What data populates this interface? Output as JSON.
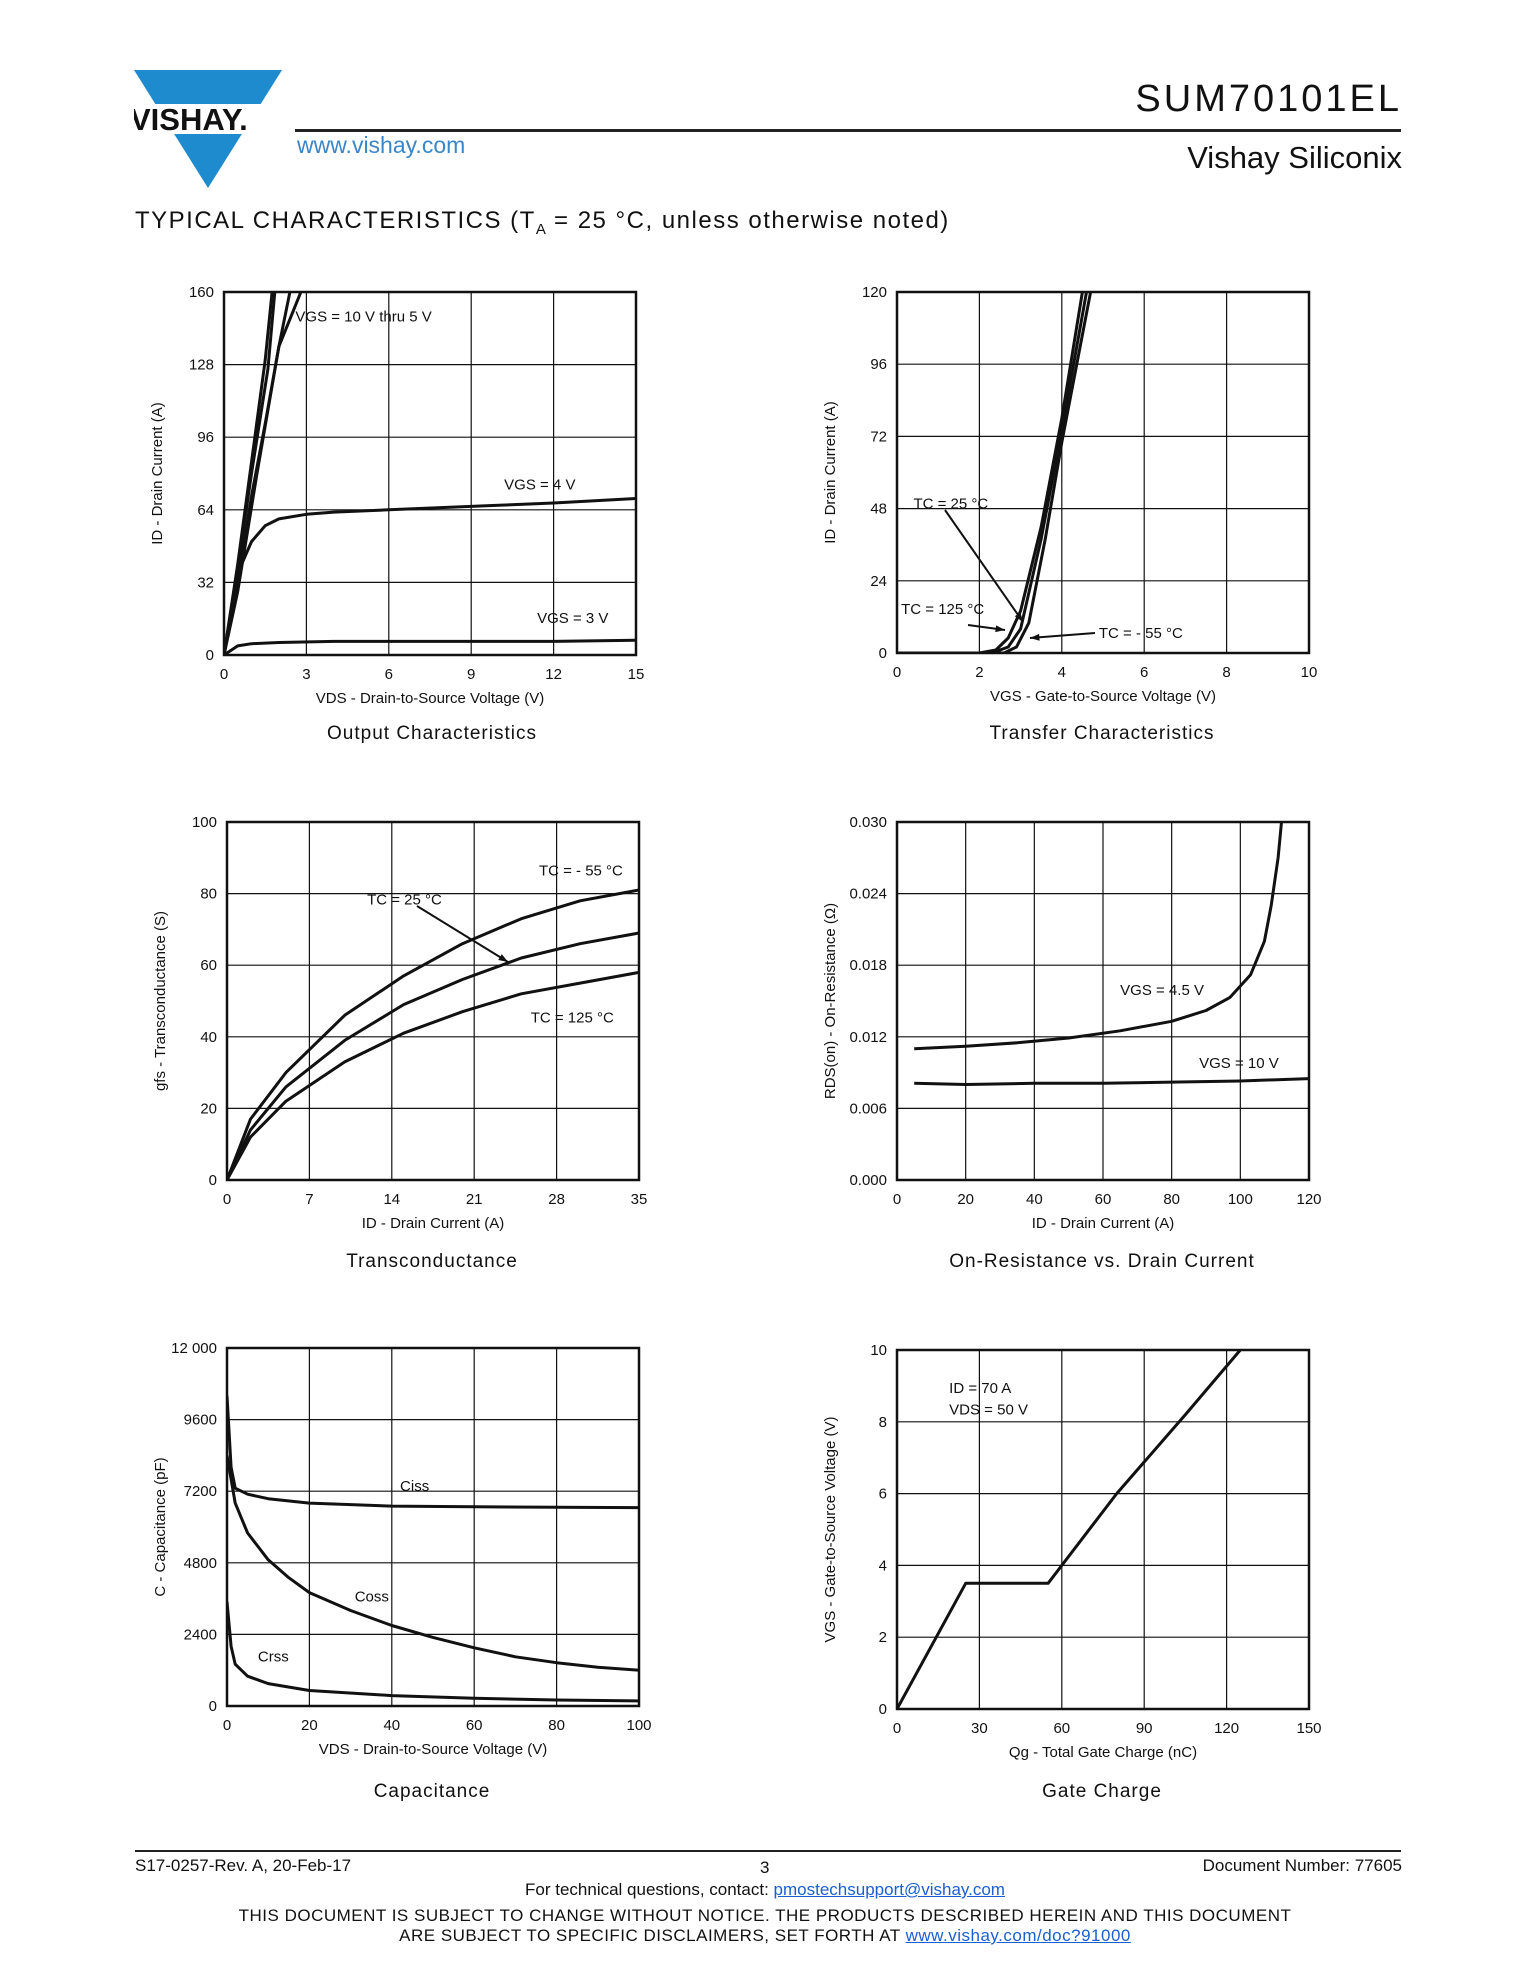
{
  "header": {
    "logo_text": "VISHAY.",
    "url": "www.vishay.com",
    "doc_title": "SUM70101EL",
    "company": "Vishay Siliconix"
  },
  "section": {
    "title_prefix": "TYPICAL CHARACTERISTICS (T",
    "title_sub": "A",
    "title_suffix": " = 25 °C, unless otherwise noted)"
  },
  "colors": {
    "logo_blue": "#1f8bcf",
    "link_blue": "#1a5fd0",
    "ink": "#111111"
  },
  "chart_data": [
    {
      "id": "output",
      "type": "line",
      "title": "Output Characteristics",
      "xlabel": "VDS - Drain-to-Source Voltage (V)",
      "ylabel": "ID - Drain Current (A)",
      "xlim": [
        0,
        15
      ],
      "ylim": [
        0,
        160
      ],
      "xticks": [
        0,
        3,
        6,
        9,
        12,
        15
      ],
      "yticks": [
        0,
        32,
        64,
        96,
        128,
        160
      ],
      "series": [
        {
          "name": "VGS = 10 V thru 5 V (a)",
          "x": [
            0,
            0.5,
            1.0,
            1.5,
            1.75
          ],
          "y": [
            0,
            40,
            85,
            130,
            160
          ]
        },
        {
          "name": "VGS = 10 V thru 5 V (b)",
          "x": [
            0,
            0.5,
            1.0,
            1.6,
            1.85
          ],
          "y": [
            0,
            38,
            80,
            126,
            160
          ]
        },
        {
          "name": "VGS = 10 V thru 5 V (c)",
          "x": [
            0,
            0.5,
            1.0,
            1.5,
            2.0,
            2.4
          ],
          "y": [
            0,
            32,
            70,
            102,
            136,
            160
          ]
        },
        {
          "name": "VGS = 10 V thru 5 V (d)",
          "x": [
            0,
            0.5,
            1.2,
            2.0,
            2.8
          ],
          "y": [
            0,
            28,
            80,
            136,
            160
          ]
        },
        {
          "name": "VGS = 4 V",
          "x": [
            0,
            0.5,
            1.0,
            1.5,
            2,
            3,
            4,
            6,
            8,
            10,
            12,
            15
          ],
          "y": [
            0,
            36,
            50,
            57,
            60,
            62,
            63,
            64,
            65,
            66,
            67,
            69
          ]
        },
        {
          "name": "VGS = 3 V",
          "x": [
            0,
            0.5,
            1,
            2,
            4,
            8,
            12,
            15
          ],
          "y": [
            0,
            4,
            5,
            5.5,
            6,
            6,
            6,
            6.5
          ]
        }
      ],
      "annotations": [
        {
          "text": "VGS = 10 V thru 5 V",
          "at": [
            2.6,
            147
          ]
        },
        {
          "text": "VGS = 4 V",
          "at": [
            10.2,
            73
          ]
        },
        {
          "text": "VGS = 3 V",
          "at": [
            11.4,
            14
          ]
        }
      ]
    },
    {
      "id": "transfer",
      "type": "line",
      "title": "Transfer Characteristics",
      "xlabel": "VGS - Gate-to-Source Voltage (V)",
      "ylabel": "ID - Drain Current (A)",
      "xlim": [
        0,
        10
      ],
      "ylim": [
        0,
        120
      ],
      "xticks": [
        0,
        2,
        4,
        6,
        8,
        10
      ],
      "yticks": [
        0,
        24,
        48,
        72,
        96,
        120
      ],
      "series": [
        {
          "name": "TC = 125 °C",
          "x": [
            0,
            2.0,
            2.4,
            2.7,
            3.0,
            3.5,
            4.0,
            4.5
          ],
          "y": [
            0,
            0,
            1,
            5,
            14,
            42,
            78,
            120
          ]
        },
        {
          "name": "TC = 25 °C",
          "x": [
            0,
            2.3,
            2.7,
            3.0,
            3.5,
            4.0,
            4.6
          ],
          "y": [
            0,
            0,
            2,
            8,
            38,
            74,
            120
          ]
        },
        {
          "name": "TC = -55 °C",
          "x": [
            0,
            2.6,
            2.9,
            3.2,
            3.6,
            4.0,
            4.7
          ],
          "y": [
            0,
            0,
            2,
            10,
            38,
            70,
            120
          ]
        }
      ],
      "annotations": [
        {
          "text": "TC = 25 °C",
          "at": [
            0.4,
            48
          ]
        },
        {
          "text": "TC = 125 °C",
          "at": [
            0.1,
            13
          ]
        },
        {
          "text": "TC = - 55 °C",
          "at": [
            4.9,
            5
          ]
        }
      ]
    },
    {
      "id": "transconductance",
      "type": "line",
      "title": "Transconductance",
      "xlabel": "ID - Drain Current (A)",
      "ylabel": "gfs - Transconductance (S)",
      "xlim": [
        0,
        35
      ],
      "ylim": [
        0,
        100
      ],
      "xticks": [
        0,
        7,
        14,
        21,
        28,
        35
      ],
      "yticks": [
        0,
        20,
        40,
        60,
        80,
        100
      ],
      "series": [
        {
          "name": "TC = -55 °C",
          "x": [
            0,
            2,
            5,
            10,
            15,
            20,
            25,
            30,
            35
          ],
          "y": [
            0,
            17,
            30,
            46,
            57,
            66,
            73,
            78,
            81
          ]
        },
        {
          "name": "TC = 25 °C",
          "x": [
            0,
            2,
            5,
            10,
            15,
            20,
            25,
            30,
            35
          ],
          "y": [
            0,
            14,
            26,
            39,
            49,
            56,
            62,
            66,
            69
          ]
        },
        {
          "name": "TC = 125 °C",
          "x": [
            0,
            2,
            5,
            10,
            15,
            20,
            25,
            30,
            35
          ],
          "y": [
            0,
            12,
            22,
            33,
            41,
            47,
            52,
            55,
            58
          ]
        }
      ],
      "annotations": [
        {
          "text": "TC = - 55 °C",
          "at": [
            26.5,
            85
          ]
        },
        {
          "text": "TC = 25 °C",
          "at": [
            11.9,
            77
          ]
        },
        {
          "text": "TC = 125 °C",
          "at": [
            25.8,
            44
          ]
        }
      ]
    },
    {
      "id": "on_resistance",
      "type": "line",
      "title": "On-Resistance vs. Drain Current",
      "xlabel": "ID - Drain Current (A)",
      "ylabel": "RDS(on) - On-Resistance (Ω)",
      "xlim": [
        0,
        120
      ],
      "ylim": [
        0,
        0.03
      ],
      "xticks": [
        0,
        20,
        40,
        60,
        80,
        100,
        120
      ],
      "yticks": [
        "0.000",
        "0.006",
        "0.012",
        "0.018",
        "0.024",
        "0.030"
      ],
      "series": [
        {
          "name": "VGS = 4.5 V",
          "x": [
            5,
            20,
            35,
            50,
            65,
            80,
            90,
            97,
            103,
            107,
            109,
            111,
            112
          ],
          "y": [
            0.011,
            0.0112,
            0.0115,
            0.0119,
            0.0125,
            0.0133,
            0.0142,
            0.0153,
            0.0172,
            0.02,
            0.023,
            0.027,
            0.03
          ]
        },
        {
          "name": "VGS = 10 V",
          "x": [
            5,
            20,
            40,
            60,
            80,
            100,
            120
          ],
          "y": [
            0.0081,
            0.008,
            0.0081,
            0.0081,
            0.0082,
            0.0083,
            0.0085
          ]
        }
      ],
      "annotations": [
        {
          "text": "VGS = 4.5 V",
          "at": [
            65,
            0.0155
          ]
        },
        {
          "text": "VGS = 10 V",
          "at": [
            88,
            0.0094
          ]
        }
      ]
    },
    {
      "id": "capacitance",
      "type": "line",
      "title": "Capacitance",
      "xlabel": "VDS - Drain-to-Source Voltage (V)",
      "ylabel": "C - Capacitance (pF)",
      "xlim": [
        0,
        100
      ],
      "ylim": [
        0,
        12000
      ],
      "xticks": [
        0,
        20,
        40,
        60,
        80,
        100
      ],
      "yticks": [
        "0",
        "2400",
        "4800",
        "7200",
        "9600",
        "12 000"
      ],
      "series": [
        {
          "name": "Ciss",
          "x": [
            0,
            1,
            2,
            5,
            10,
            20,
            40,
            60,
            80,
            100
          ],
          "y": [
            10400,
            8000,
            7300,
            7100,
            6950,
            6800,
            6700,
            6680,
            6660,
            6650
          ]
        },
        {
          "name": "Coss",
          "x": [
            0,
            2,
            5,
            10,
            15,
            20,
            30,
            40,
            50,
            60,
            70,
            80,
            90,
            100
          ],
          "y": [
            8400,
            6800,
            5800,
            4900,
            4300,
            3800,
            3200,
            2700,
            2300,
            1950,
            1650,
            1450,
            1300,
            1200
          ]
        },
        {
          "name": "Crss",
          "x": [
            0,
            1,
            2,
            5,
            10,
            20,
            40,
            60,
            80,
            100
          ],
          "y": [
            3500,
            2000,
            1400,
            1000,
            750,
            520,
            350,
            260,
            200,
            170
          ]
        }
      ],
      "annotations": [
        {
          "text": "Ciss",
          "at": [
            42,
            7200
          ]
        },
        {
          "text": "Coss",
          "at": [
            31,
            3500
          ]
        },
        {
          "text": "Crss",
          "at": [
            7.5,
            1500
          ]
        }
      ]
    },
    {
      "id": "gate_charge",
      "type": "line",
      "title": "Gate Charge",
      "xlabel": "Qg - Total Gate Charge (nC)",
      "ylabel": "VGS - Gate-to-Source Voltage (V)",
      "xlim": [
        0,
        150
      ],
      "ylim": [
        0,
        10
      ],
      "xticks": [
        0,
        30,
        60,
        90,
        120,
        150
      ],
      "yticks": [
        0,
        2,
        4,
        6,
        8,
        10
      ],
      "series": [
        {
          "name": "ID = 70 A, VDS = 50 V",
          "x": [
            0,
            25,
            55,
            80,
            105,
            125
          ],
          "y": [
            0,
            3.5,
            3.5,
            6.0,
            8.2,
            10
          ]
        }
      ],
      "annotations": [
        {
          "text": "ID = 70 A",
          "at": [
            19,
            8.8
          ]
        },
        {
          "text": "VDS = 50 V",
          "at": [
            19,
            8.2
          ]
        }
      ]
    }
  ],
  "footer": {
    "revision": "S17-0257-Rev. A, 20-Feb-17",
    "page": "3",
    "doc_number": "Document Number: 77605",
    "contact_prefix": "For technical questions, contact: ",
    "contact_email": "pmostechsupport@vishay.com",
    "disclaimer_line1": "THIS DOCUMENT IS SUBJECT TO CHANGE WITHOUT NOTICE. THE PRODUCTS DESCRIBED HEREIN AND THIS DOCUMENT",
    "disclaimer_line2_prefix": "ARE SUBJECT TO SPECIFIC DISCLAIMERS, SET FORTH AT ",
    "disclaimer_link": "www.vishay.com/doc?91000"
  }
}
